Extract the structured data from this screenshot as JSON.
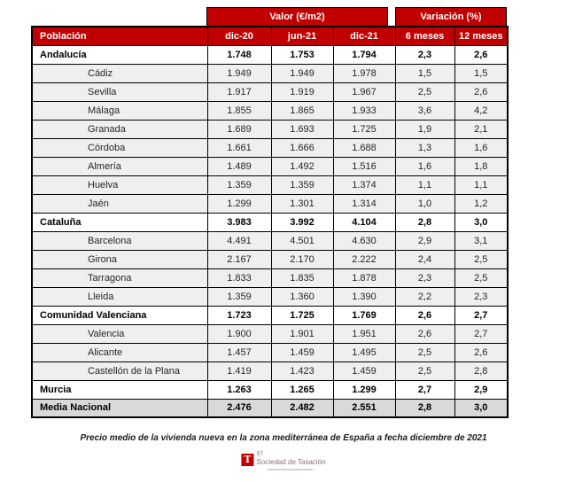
{
  "chart_data": {
    "type": "table",
    "population_header": "Población",
    "groups": [
      {
        "label": "Valor (€/m2)",
        "columns": [
          "dic-20",
          "jun-21",
          "dic-21"
        ]
      },
      {
        "label": "Variación (%)",
        "columns": [
          "6 meses",
          "12 meses"
        ]
      }
    ],
    "rows": [
      {
        "name": "Andalucía",
        "type": "region",
        "values": [
          "1.748",
          "1.753",
          "1.794",
          "2,3",
          "2,6"
        ]
      },
      {
        "name": "Cádiz",
        "type": "city",
        "values": [
          "1.949",
          "1.949",
          "1.978",
          "1,5",
          "1,5"
        ]
      },
      {
        "name": "Sevilla",
        "type": "city",
        "values": [
          "1.917",
          "1.919",
          "1.967",
          "2,5",
          "2,6"
        ]
      },
      {
        "name": "Málaga",
        "type": "city",
        "values": [
          "1.855",
          "1.865",
          "1.933",
          "3,6",
          "4,2"
        ]
      },
      {
        "name": "Granada",
        "type": "city",
        "values": [
          "1.689",
          "1.693",
          "1.725",
          "1,9",
          "2,1"
        ]
      },
      {
        "name": "Córdoba",
        "type": "city",
        "values": [
          "1.661",
          "1.666",
          "1.688",
          "1,3",
          "1,6"
        ]
      },
      {
        "name": "Almería",
        "type": "city",
        "values": [
          "1.489",
          "1.492",
          "1.516",
          "1,6",
          "1,8"
        ]
      },
      {
        "name": "Huelva",
        "type": "city",
        "values": [
          "1.359",
          "1.359",
          "1.374",
          "1,1",
          "1,1"
        ]
      },
      {
        "name": "Jaén",
        "type": "city",
        "values": [
          "1.299",
          "1.301",
          "1.314",
          "1,0",
          "1,2"
        ]
      },
      {
        "name": "Cataluña",
        "type": "region",
        "values": [
          "3.983",
          "3.992",
          "4.104",
          "2,8",
          "3,0"
        ]
      },
      {
        "name": "Barcelona",
        "type": "city",
        "values": [
          "4.491",
          "4.501",
          "4.630",
          "2,9",
          "3,1"
        ]
      },
      {
        "name": "Girona",
        "type": "city",
        "values": [
          "2.167",
          "2.170",
          "2.222",
          "2,4",
          "2,5"
        ]
      },
      {
        "name": "Tarragona",
        "type": "city",
        "values": [
          "1.833",
          "1.835",
          "1.878",
          "2,3",
          "2,5"
        ]
      },
      {
        "name": "Lleida",
        "type": "city",
        "values": [
          "1.359",
          "1.360",
          "1.390",
          "2,2",
          "2,3"
        ]
      },
      {
        "name": "Comunidad Valenciana",
        "type": "region",
        "values": [
          "1.723",
          "1.725",
          "1.769",
          "2,6",
          "2,7"
        ]
      },
      {
        "name": "Valencia",
        "type": "city",
        "values": [
          "1.900",
          "1.901",
          "1.951",
          "2,6",
          "2,7"
        ]
      },
      {
        "name": "Alicante",
        "type": "city",
        "values": [
          "1.457",
          "1.459",
          "1.495",
          "2,5",
          "2,6"
        ]
      },
      {
        "name": "Castellón de la Plana",
        "type": "city",
        "values": [
          "1.419",
          "1.423",
          "1.459",
          "2,5",
          "2,8"
        ]
      },
      {
        "name": "Murcia",
        "type": "region",
        "values": [
          "1.263",
          "1.265",
          "1.299",
          "2,7",
          "2,9"
        ]
      },
      {
        "name": "Media Nacional",
        "type": "total",
        "values": [
          "2.476",
          "2.482",
          "2.551",
          "2,8",
          "3,0"
        ]
      }
    ]
  },
  "caption": "Precio medio de la vivienda nueva en la zona mediterránea de España a fecha diciembre de 2021",
  "logo": {
    "mark": "T",
    "st": "ST",
    "name": "Sociedad de Tasación"
  },
  "colors": {
    "header_red": "#C00000",
    "city_row_gray": "#EFEFEF",
    "total_row_gray": "#D9D9D9",
    "border_black": "#000000"
  }
}
